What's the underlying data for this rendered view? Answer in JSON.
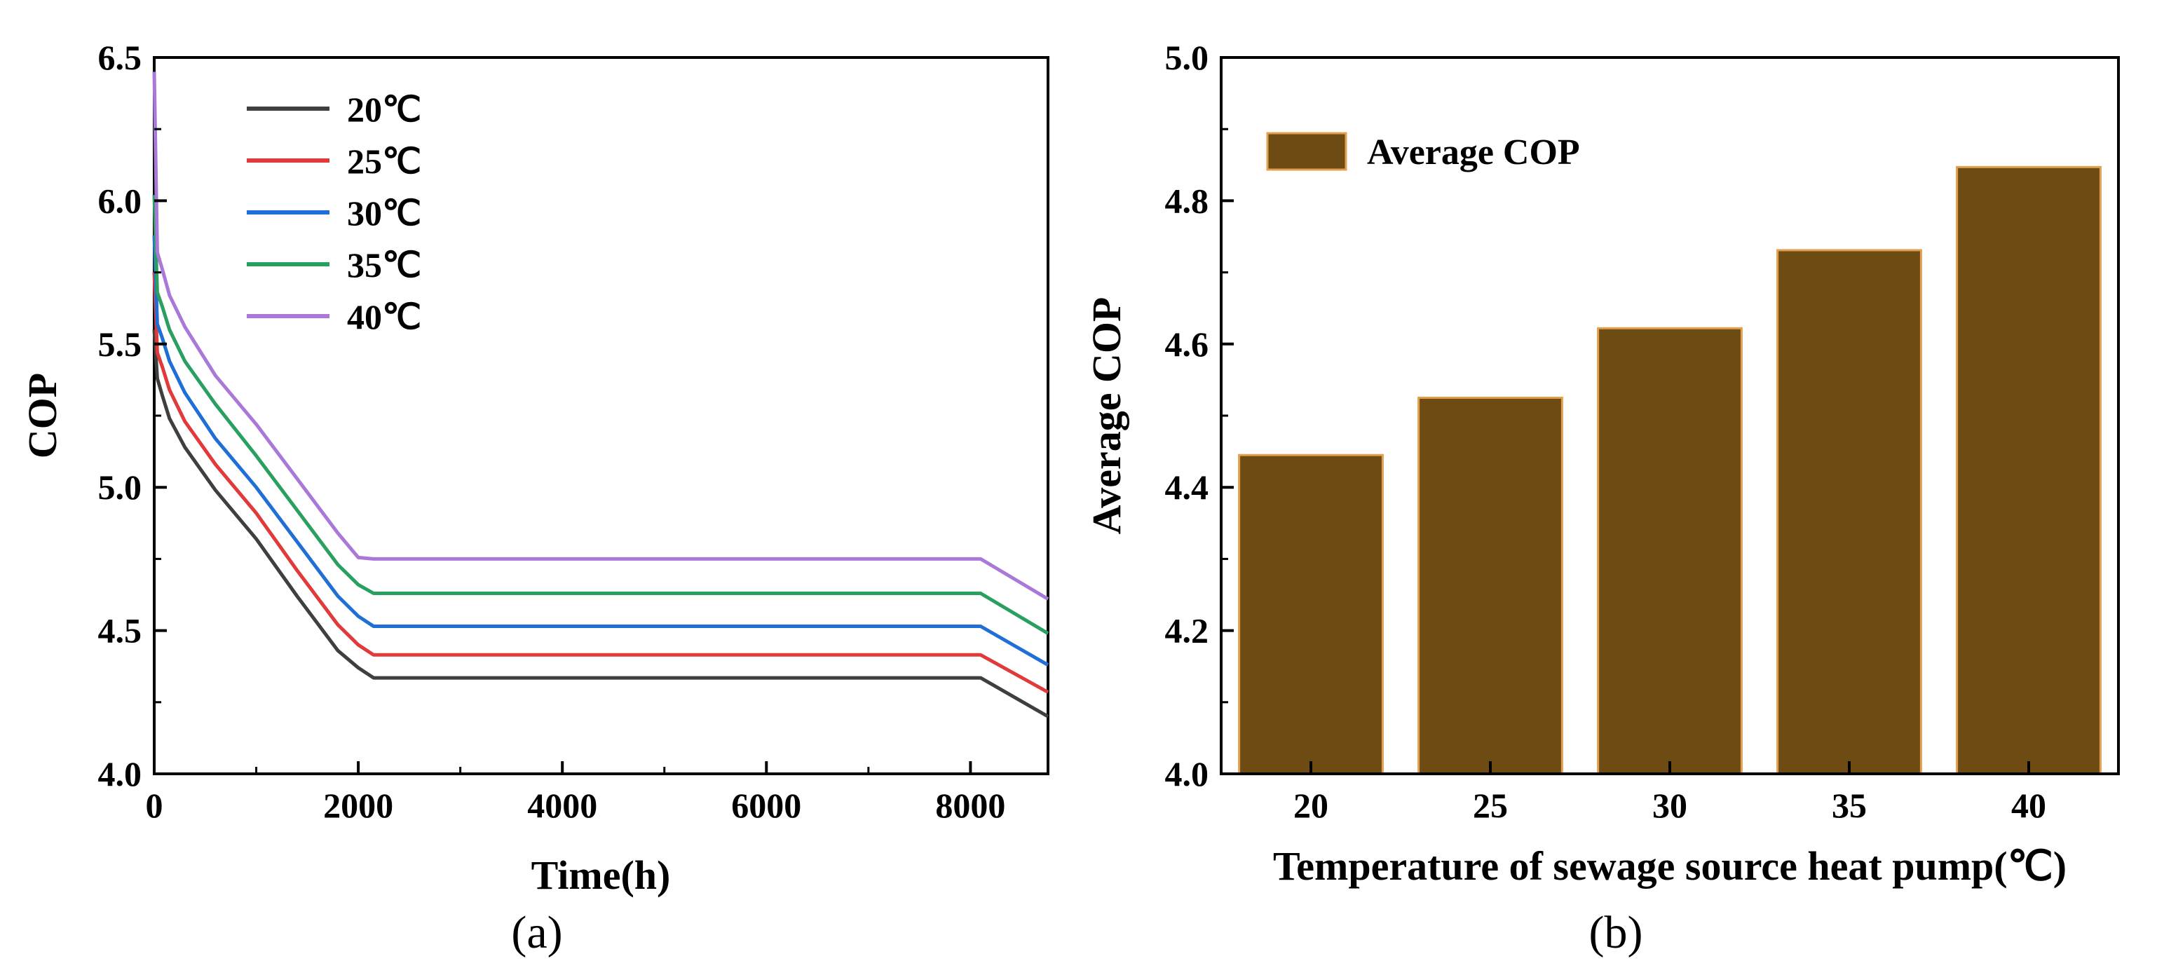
{
  "chart_data": [
    {
      "type": "line",
      "panel_label": "(a)",
      "xlabel": "Time(h)",
      "ylabel": "COP",
      "xlim": [
        0,
        8760
      ],
      "ylim": [
        4.0,
        6.5
      ],
      "xticks": [
        0,
        2000,
        4000,
        6000,
        8000
      ],
      "xtick_labels": [
        "0",
        "2000",
        "4000",
        "6000",
        "8000"
      ],
      "yticks": [
        4.0,
        4.5,
        5.0,
        5.5,
        6.0,
        6.5
      ],
      "ytick_labels": [
        "4.0",
        "4.5",
        "5.0",
        "5.5",
        "6.0",
        "6.5"
      ],
      "legend_position": "top-left",
      "series": [
        {
          "name": "20℃",
          "color": "#3f3f3f",
          "x": [
            0,
            30,
            80,
            150,
            300,
            600,
            1000,
            1400,
            1800,
            2000,
            2150,
            8100,
            8760
          ],
          "y": [
            5.55,
            5.38,
            5.32,
            5.24,
            5.14,
            4.99,
            4.82,
            4.62,
            4.43,
            4.37,
            4.335,
            4.335,
            4.2
          ]
        },
        {
          "name": "25℃",
          "color": "#e03a3a",
          "x": [
            0,
            30,
            80,
            150,
            300,
            600,
            1000,
            1400,
            1800,
            2000,
            2150,
            8100,
            8760
          ],
          "y": [
            5.75,
            5.47,
            5.42,
            5.34,
            5.23,
            5.08,
            4.91,
            4.71,
            4.52,
            4.45,
            4.415,
            4.415,
            4.285
          ]
        },
        {
          "name": "30℃",
          "color": "#1f6fd6",
          "x": [
            0,
            30,
            80,
            150,
            300,
            600,
            1000,
            1400,
            1800,
            2000,
            2150,
            8100,
            8760
          ],
          "y": [
            5.88,
            5.57,
            5.52,
            5.44,
            5.33,
            5.17,
            5.0,
            4.81,
            4.62,
            4.55,
            4.515,
            4.515,
            4.38
          ]
        },
        {
          "name": "35℃",
          "color": "#2aa060",
          "x": [
            0,
            30,
            80,
            150,
            300,
            600,
            1000,
            1400,
            1800,
            2000,
            2150,
            8100,
            8760
          ],
          "y": [
            6.02,
            5.68,
            5.63,
            5.55,
            5.44,
            5.29,
            5.11,
            4.92,
            4.73,
            4.66,
            4.63,
            4.63,
            4.49
          ]
        },
        {
          "name": "40℃",
          "color": "#a978d8",
          "x": [
            0,
            30,
            80,
            150,
            300,
            600,
            1000,
            1400,
            1800,
            2000,
            2150,
            8100,
            8760
          ],
          "y": [
            6.45,
            5.82,
            5.76,
            5.67,
            5.56,
            5.39,
            5.22,
            5.03,
            4.84,
            4.755,
            4.75,
            4.75,
            4.61
          ]
        }
      ]
    },
    {
      "type": "bar",
      "panel_label": "(b)",
      "xlabel": "Temperature of sewage source heat pump(℃)",
      "ylabel": "Average COP",
      "categories": [
        "20",
        "25",
        "30",
        "35",
        "40"
      ],
      "values": [
        4.445,
        4.525,
        4.622,
        4.731,
        4.847
      ],
      "ylim": [
        4.0,
        5.0
      ],
      "yticks": [
        4.0,
        4.2,
        4.4,
        4.6,
        4.8,
        5.0
      ],
      "ytick_labels": [
        "4.0",
        "4.2",
        "4.4",
        "4.6",
        "4.8",
        "5.0"
      ],
      "legend": "Average COP",
      "legend_position": "top-left",
      "bar_color": "#6e4b12",
      "bar_edge_color": "#e0a050"
    }
  ]
}
